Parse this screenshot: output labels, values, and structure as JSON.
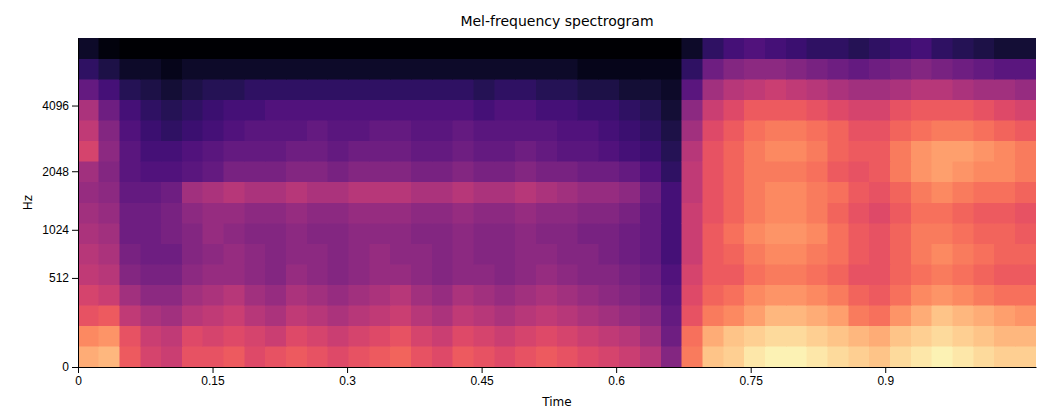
{
  "chart_data": {
    "type": "heatmap",
    "title": "Mel-frequency spectrogram",
    "x_label": "Time",
    "y_label": "Hz",
    "log": "y",
    "color": "magma",
    "color_range": [
      -80,
      0
    ],
    "xlim": [
      0,
      1.0681
    ],
    "ylim": [
      0,
      8000
    ],
    "xticks": [
      0,
      0.15,
      0.3,
      0.45,
      0.6,
      0.75,
      0.9
    ],
    "yticks": [
      0,
      512,
      1024,
      2048,
      4096
    ],
    "x_bins": [
      0,
      0.0232,
      0.0464,
      0.0697,
      0.0929,
      0.1161,
      0.1393,
      0.1625,
      0.1858,
      0.209,
      0.2322,
      0.2554,
      0.2786,
      0.3019,
      0.3251,
      0.3483,
      0.3715,
      0.3947,
      0.418,
      0.4412,
      0.4644,
      0.4876,
      0.5108,
      0.5341,
      0.5573,
      0.5805,
      0.6037,
      0.6269,
      0.6502,
      0.6734,
      0.6966,
      0.7198,
      0.743,
      0.7663,
      0.7895,
      0.8127,
      0.8359,
      0.8591,
      0.8824,
      0.9056,
      0.9288,
      0.952,
      0.9752,
      0.9985,
      1.0217,
      1.0449,
      1.0681
    ],
    "y_bins": [
      0,
      84,
      185,
      308,
      456,
      636,
      853,
      1115,
      1433,
      1817,
      2282,
      2844,
      3524,
      4347,
      5342,
      6545,
      8000
    ],
    "cells": [
      [
        -14,
        -12,
        -28,
        -34,
        -36,
        -30,
        -30,
        -28,
        -32,
        -30,
        -28,
        -30,
        -32,
        -30,
        -28,
        -26,
        -30,
        -32,
        -28,
        -30,
        -32,
        -30,
        -28,
        -30,
        -32,
        -34,
        -36,
        -40,
        -50,
        -22,
        -10,
        -8,
        -4,
        -2,
        -2,
        -4,
        -6,
        -8,
        -10,
        -6,
        -4,
        -2,
        -4,
        -6,
        -8,
        -8
      ],
      [
        -20,
        -18,
        -30,
        -36,
        -38,
        -32,
        -34,
        -32,
        -34,
        -36,
        -32,
        -34,
        -36,
        -34,
        -32,
        -30,
        -34,
        -36,
        -32,
        -34,
        -36,
        -34,
        -32,
        -34,
        -36,
        -38,
        -40,
        -44,
        -54,
        -24,
        -14,
        -10,
        -8,
        -6,
        -6,
        -8,
        -10,
        -12,
        -14,
        -10,
        -8,
        -6,
        -8,
        -10,
        -12,
        -12
      ],
      [
        -30,
        -28,
        -38,
        -42,
        -44,
        -40,
        -38,
        -36,
        -40,
        -42,
        -38,
        -40,
        -42,
        -40,
        -38,
        -36,
        -40,
        -42,
        -38,
        -40,
        -42,
        -40,
        -38,
        -40,
        -42,
        -44,
        -46,
        -48,
        -56,
        -30,
        -22,
        -20,
        -16,
        -12,
        -12,
        -14,
        -16,
        -22,
        -24,
        -18,
        -14,
        -10,
        -12,
        -14,
        -16,
        -18
      ],
      [
        -34,
        -36,
        -44,
        -48,
        -48,
        -44,
        -42,
        -40,
        -44,
        -46,
        -42,
        -44,
        -46,
        -44,
        -42,
        -40,
        -44,
        -46,
        -42,
        -44,
        -46,
        -44,
        -42,
        -44,
        -46,
        -48,
        -50,
        -52,
        -58,
        -32,
        -26,
        -24,
        -20,
        -18,
        -18,
        -20,
        -22,
        -26,
        -28,
        -24,
        -20,
        -18,
        -20,
        -22,
        -24,
        -24
      ],
      [
        -38,
        -40,
        -50,
        -52,
        -52,
        -48,
        -46,
        -46,
        -48,
        -50,
        -46,
        -48,
        -50,
        -48,
        -46,
        -46,
        -48,
        -50,
        -48,
        -48,
        -50,
        -48,
        -46,
        -48,
        -50,
        -50,
        -52,
        -54,
        -60,
        -34,
        -28,
        -28,
        -24,
        -22,
        -22,
        -24,
        -26,
        -30,
        -30,
        -26,
        -24,
        -22,
        -24,
        -26,
        -28,
        -28
      ],
      [
        -40,
        -42,
        -52,
        -54,
        -54,
        -50,
        -48,
        -46,
        -48,
        -50,
        -48,
        -48,
        -50,
        -48,
        -46,
        -48,
        -48,
        -50,
        -48,
        -50,
        -50,
        -48,
        -48,
        -50,
        -50,
        -52,
        -54,
        -56,
        -62,
        -36,
        -28,
        -26,
        -22,
        -20,
        -20,
        -22,
        -24,
        -28,
        -30,
        -26,
        -22,
        -20,
        -22,
        -24,
        -26,
        -26
      ],
      [
        -42,
        -44,
        -54,
        -54,
        -52,
        -50,
        -46,
        -48,
        -50,
        -50,
        -48,
        -50,
        -50,
        -48,
        -48,
        -48,
        -50,
        -50,
        -48,
        -50,
        -50,
        -48,
        -50,
        -50,
        -52,
        -52,
        -54,
        -56,
        -62,
        -36,
        -28,
        -24,
        -20,
        -18,
        -18,
        -20,
        -24,
        -28,
        -30,
        -26,
        -22,
        -22,
        -24,
        -26,
        -26,
        -28
      ],
      [
        -44,
        -46,
        -54,
        -54,
        -52,
        -48,
        -46,
        -46,
        -48,
        -48,
        -46,
        -48,
        -48,
        -46,
        -46,
        -46,
        -48,
        -48,
        -46,
        -48,
        -48,
        -46,
        -48,
        -48,
        -50,
        -50,
        -52,
        -56,
        -62,
        -36,
        -30,
        -26,
        -22,
        -20,
        -20,
        -22,
        -26,
        -30,
        -32,
        -28,
        -24,
        -24,
        -26,
        -28,
        -28,
        -30
      ],
      [
        -46,
        -48,
        -56,
        -56,
        -54,
        -44,
        -42,
        -40,
        -42,
        -42,
        -40,
        -42,
        -42,
        -40,
        -40,
        -40,
        -42,
        -42,
        -40,
        -42,
        -42,
        -40,
        -42,
        -44,
        -46,
        -46,
        -48,
        -54,
        -62,
        -38,
        -30,
        -26,
        -22,
        -20,
        -20,
        -22,
        -24,
        -28,
        -30,
        -26,
        -22,
        -20,
        -22,
        -24,
        -24,
        -26
      ],
      [
        -44,
        -50,
        -58,
        -60,
        -60,
        -58,
        -56,
        -52,
        -52,
        -52,
        -50,
        -50,
        -52,
        -50,
        -50,
        -50,
        -52,
        -52,
        -50,
        -52,
        -52,
        -50,
        -52,
        -52,
        -54,
        -54,
        -56,
        -60,
        -66,
        -38,
        -30,
        -26,
        -22,
        -22,
        -22,
        -24,
        -28,
        -30,
        -28,
        -22,
        -18,
        -16,
        -18,
        -20,
        -20,
        -22
      ],
      [
        -34,
        -48,
        -58,
        -62,
        -62,
        -60,
        -58,
        -56,
        -56,
        -56,
        -54,
        -54,
        -56,
        -54,
        -54,
        -54,
        -56,
        -56,
        -54,
        -56,
        -56,
        -54,
        -56,
        -58,
        -58,
        -60,
        -62,
        -64,
        -68,
        -40,
        -30,
        -26,
        -22,
        -20,
        -20,
        -22,
        -26,
        -28,
        -28,
        -22,
        -18,
        -16,
        -16,
        -18,
        -20,
        -22
      ],
      [
        -38,
        -50,
        -60,
        -64,
        -66,
        -64,
        -62,
        -60,
        -58,
        -58,
        -58,
        -56,
        -58,
        -58,
        -56,
        -56,
        -58,
        -58,
        -56,
        -58,
        -58,
        -58,
        -58,
        -60,
        -60,
        -62,
        -64,
        -66,
        -70,
        -44,
        -32,
        -28,
        -24,
        -22,
        -22,
        -24,
        -26,
        -30,
        -30,
        -26,
        -24,
        -22,
        -22,
        -24,
        -26,
        -28
      ],
      [
        -42,
        -54,
        -62,
        -66,
        -68,
        -66,
        -64,
        -62,
        -62,
        -60,
        -60,
        -60,
        -60,
        -60,
        -60,
        -60,
        -60,
        -60,
        -60,
        -62,
        -60,
        -60,
        -62,
        -62,
        -64,
        -64,
        -66,
        -68,
        -72,
        -48,
        -36,
        -32,
        -28,
        -28,
        -28,
        -30,
        -32,
        -34,
        -34,
        -30,
        -28,
        -28,
        -28,
        -30,
        -32,
        -34
      ],
      [
        -56,
        -62,
        -68,
        -70,
        -72,
        -70,
        -68,
        -68,
        -66,
        -66,
        -66,
        -66,
        -66,
        -66,
        -66,
        -66,
        -66,
        -66,
        -66,
        -68,
        -66,
        -66,
        -68,
        -68,
        -70,
        -70,
        -72,
        -72,
        -74,
        -58,
        -44,
        -40,
        -38,
        -36,
        -38,
        -40,
        -42,
        -44,
        -44,
        -42,
        -40,
        -40,
        -42,
        -44,
        -44,
        -46
      ],
      [
        -66,
        -70,
        -74,
        -74,
        -76,
        -74,
        -74,
        -74,
        -74,
        -74,
        -74,
        -74,
        -74,
        -74,
        -74,
        -74,
        -74,
        -74,
        -74,
        -74,
        -74,
        -74,
        -74,
        -74,
        -76,
        -76,
        -76,
        -76,
        -76,
        -66,
        -54,
        -50,
        -48,
        -48,
        -50,
        -52,
        -54,
        -56,
        -54,
        -52,
        -50,
        -52,
        -54,
        -56,
        -58,
        -58
      ],
      [
        -74,
        -78,
        -80,
        -80,
        -80,
        -80,
        -80,
        -80,
        -80,
        -80,
        -80,
        -80,
        -80,
        -80,
        -80,
        -80,
        -80,
        -80,
        -80,
        -80,
        -80,
        -80,
        -80,
        -80,
        -80,
        -80,
        -80,
        -80,
        -80,
        -74,
        -66,
        -62,
        -60,
        -62,
        -64,
        -66,
        -66,
        -68,
        -66,
        -64,
        -62,
        -66,
        -68,
        -70,
        -72,
        -72
      ]
    ]
  }
}
